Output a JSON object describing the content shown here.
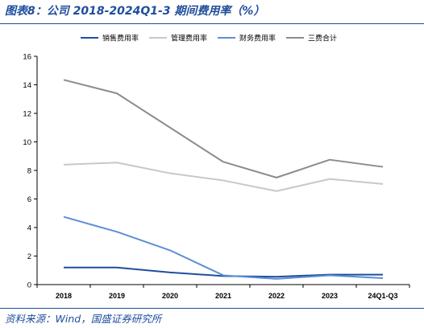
{
  "title": "图表8：公司 2018-2024Q1-3 期间费用率（%）",
  "source": "资料来源：Wind，国盛证券研究所",
  "chart_data": {
    "type": "line",
    "categories": [
      "2018",
      "2019",
      "2020",
      "2021",
      "2022",
      "2023",
      "24Q1-Q3"
    ],
    "ylim": [
      0,
      16
    ],
    "yticks": [
      0,
      2,
      4,
      6,
      8,
      10,
      12,
      14,
      16
    ],
    "legend_position": "top",
    "series": [
      {
        "name": "销售费用率",
        "color": "#1f4e9c",
        "values": [
          1.2,
          1.2,
          0.85,
          0.6,
          0.55,
          0.7,
          0.7
        ]
      },
      {
        "name": "管理费用率",
        "color": "#c8c8c8",
        "values": [
          8.4,
          8.55,
          7.8,
          7.3,
          6.55,
          7.4,
          7.05
        ]
      },
      {
        "name": "财务费用率",
        "color": "#5b8fd4",
        "values": [
          4.75,
          3.7,
          2.4,
          0.65,
          0.4,
          0.65,
          0.45
        ]
      },
      {
        "name": "三费合计",
        "color": "#8c8c8c",
        "values": [
          14.35,
          13.4,
          11.0,
          8.6,
          7.5,
          8.75,
          8.25
        ]
      }
    ]
  }
}
